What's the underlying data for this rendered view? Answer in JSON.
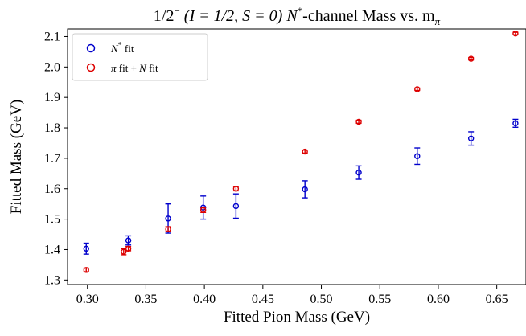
{
  "chart_data": {
    "type": "scatter",
    "title_parts": {
      "main": "1/2",
      "sup_minus": "−",
      "quantum": " (I = 1/2, S = 0) ",
      "channel": "N",
      "channel_sup": "*",
      "rest": "-channel Mass vs. m",
      "rest_sub": "π"
    },
    "xlabel": "Fitted Pion Mass (GeV)",
    "ylabel": "Fitted Mass (GeV)",
    "xlim": [
      0.283,
      0.675
    ],
    "ylim": [
      1.285,
      2.125
    ],
    "xticks": [
      0.3,
      0.35,
      0.4,
      0.45,
      0.5,
      0.55,
      0.6,
      0.65
    ],
    "xtick_labels": [
      "0.30",
      "0.35",
      "0.40",
      "0.45",
      "0.50",
      "0.55",
      "0.60",
      "0.65"
    ],
    "yticks": [
      1.3,
      1.4,
      1.5,
      1.6,
      1.7,
      1.8,
      1.9,
      2.0,
      2.1
    ],
    "ytick_labels": [
      "1.3",
      "1.4",
      "1.5",
      "1.6",
      "1.7",
      "1.8",
      "1.9",
      "2.0",
      "2.1"
    ],
    "grid": false,
    "legend_position": "top-left",
    "series": [
      {
        "legend": {
          "label": "N",
          "sup": "*",
          "suffix": " fit"
        },
        "color": "#0000cc",
        "points": [
          {
            "x": 0.299,
            "y": 1.403,
            "err": 0.018
          },
          {
            "x": 0.335,
            "y": 1.43,
            "err": 0.015
          },
          {
            "x": 0.369,
            "y": 1.502,
            "err": 0.048
          },
          {
            "x": 0.399,
            "y": 1.538,
            "err": 0.038
          },
          {
            "x": 0.427,
            "y": 1.543,
            "err": 0.04
          },
          {
            "x": 0.486,
            "y": 1.598,
            "err": 0.028
          },
          {
            "x": 0.532,
            "y": 1.653,
            "err": 0.022
          },
          {
            "x": 0.582,
            "y": 1.707,
            "err": 0.027
          },
          {
            "x": 0.628,
            "y": 1.765,
            "err": 0.022
          },
          {
            "x": 0.666,
            "y": 1.815,
            "err": 0.013
          }
        ]
      },
      {
        "legend": {
          "pre": "π",
          "mid": " fit + ",
          "label": "N",
          "suffix": " fit"
        },
        "color": "#dd0000",
        "points": [
          {
            "x": 0.299,
            "y": 1.333,
            "err": 0.006
          },
          {
            "x": 0.331,
            "y": 1.393,
            "err": 0.01
          },
          {
            "x": 0.335,
            "y": 1.403,
            "err": 0.007
          },
          {
            "x": 0.369,
            "y": 1.467,
            "err": 0.008
          },
          {
            "x": 0.399,
            "y": 1.53,
            "err": 0.008
          },
          {
            "x": 0.427,
            "y": 1.6,
            "err": 0.007
          },
          {
            "x": 0.486,
            "y": 1.722,
            "err": 0.005
          },
          {
            "x": 0.532,
            "y": 1.82,
            "err": 0.005
          },
          {
            "x": 0.582,
            "y": 1.927,
            "err": 0.004
          },
          {
            "x": 0.628,
            "y": 2.027,
            "err": 0.004
          },
          {
            "x": 0.666,
            "y": 2.11,
            "err": 0.004
          }
        ]
      }
    ]
  }
}
